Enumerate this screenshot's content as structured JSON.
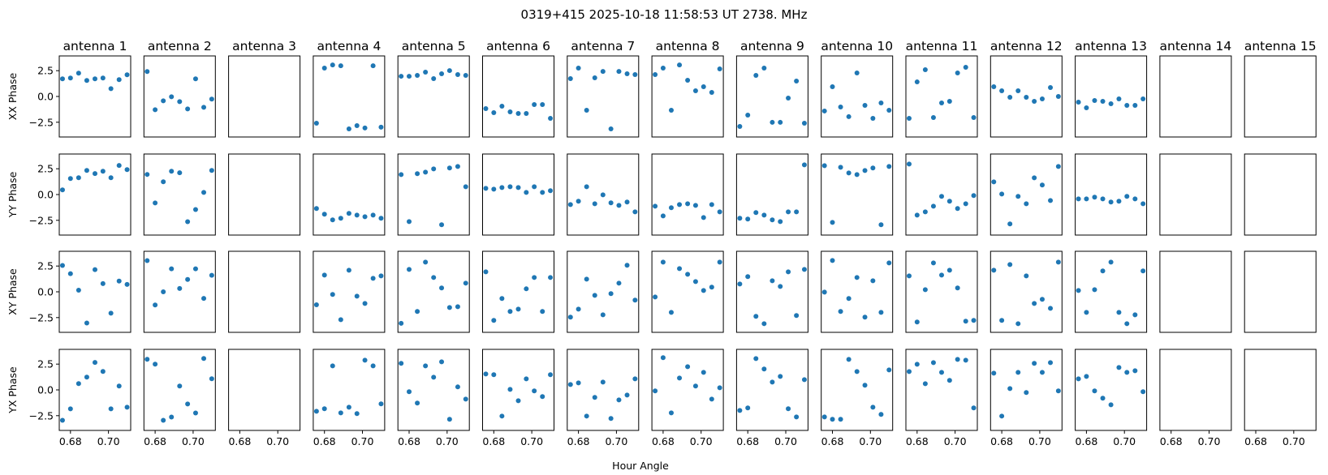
{
  "chart_data": {
    "type": "scatter",
    "title": "0319+415  2025-10-18 11:58:53 UT  2738. MHz",
    "xlabel": "Hour Angle",
    "row_labels": [
      "XX Phase",
      "YY Phase",
      "XY Phase",
      "YX Phase"
    ],
    "xlim": [
      0.6741,
      0.7117
    ],
    "ylim": [
      -3.93,
      3.93
    ],
    "xticks": [
      0.68,
      0.7
    ],
    "xtick_labels": [
      "0.68",
      "0.70"
    ],
    "yticks": [
      2.5,
      0.0,
      -2.5
    ],
    "ytick_labels": [
      "2.5",
      "0.0",
      "−2.5"
    ],
    "marker_color": "#1f77b4",
    "grid": false,
    "x": [
      0.6758,
      0.68,
      0.6843,
      0.6886,
      0.6929,
      0.6971,
      0.7013,
      0.7056,
      0.7098
    ],
    "antennas": [
      {
        "name": "antenna 1",
        "XX": [
          1.71,
          1.79,
          2.26,
          1.55,
          1.71,
          1.79,
          0.76,
          1.63,
          2.1
        ],
        "YY": [
          0.45,
          1.55,
          1.63,
          2.34,
          2.03,
          2.26,
          1.63,
          2.82,
          2.42
        ],
        "XY": [
          2.55,
          1.76,
          0.16,
          -3.03,
          2.15,
          0.8,
          -2.07,
          1.04,
          0.72
        ],
        "YX": [
          -2.95,
          -1.84,
          0.61,
          1.24,
          2.66,
          1.79,
          -1.84,
          0.37,
          -1.68
        ]
      },
      {
        "name": "antenna 2",
        "XX": [
          2.42,
          -1.29,
          -0.42,
          -0.03,
          -0.5,
          -1.21,
          1.71,
          -1.05,
          -0.26
        ],
        "YY": [
          1.95,
          -0.82,
          1.24,
          2.26,
          2.11,
          -2.63,
          -1.45,
          0.21,
          2.34
        ],
        "XY": [
          3.03,
          -1.28,
          0,
          2.23,
          0.32,
          1.2,
          2.23,
          -0.64,
          1.6
        ],
        "YX": [
          2.97,
          2.5,
          -2.95,
          -2.63,
          0.37,
          -1.37,
          -2.24,
          3.05,
          1.08
        ]
      },
      {
        "name": "antenna 3",
        "XX": null,
        "YY": null,
        "XY": null,
        "YX": null
      },
      {
        "name": "antenna 4",
        "XX": [
          -2.59,
          2.75,
          3.06,
          2.98,
          -3.14,
          -2.83,
          -3.06,
          2.98,
          -2.98
        ],
        "YY": [
          -1.36,
          -1.91,
          -2.46,
          -2.3,
          -1.83,
          -1.99,
          -2.15,
          -1.99,
          -2.3
        ],
        "XY": [
          -1.26,
          1.62,
          -0.26,
          -2.7,
          2.09,
          -0.42,
          -1.13,
          1.31,
          1.54
        ],
        "YX": [
          -2.07,
          -1.83,
          2.33,
          -2.23,
          -1.68,
          -2.3,
          2.88,
          2.33,
          -1.36
        ]
      },
      {
        "name": "antenna 5",
        "XX": [
          1.96,
          1.96,
          2.04,
          2.36,
          1.73,
          2.2,
          2.51,
          2.12,
          2.04
        ],
        "YY": [
          1.94,
          -2.62,
          2.02,
          2.17,
          2.49,
          -2.93,
          2.57,
          2.72,
          0.76
        ],
        "XY": [
          -3.06,
          2.17,
          -1.91,
          2.88,
          1.39,
          0.37,
          -1.52,
          -1.44,
          0.84
        ],
        "YX": [
          2.57,
          -0.18,
          -1.28,
          2.33,
          1.23,
          2.72,
          -2.85,
          0.29,
          -0.89
        ]
      },
      {
        "name": "antenna 6",
        "XX": [
          -1.18,
          -1.57,
          -0.94,
          -1.49,
          -1.65,
          -1.65,
          -0.79,
          -0.79,
          -2.12
        ],
        "YY": [
          0.6,
          0.52,
          0.68,
          0.76,
          0.68,
          0.21,
          0.76,
          0.21,
          0.37
        ],
        "XY": [
          1.94,
          -2.77,
          -0.65,
          -1.91,
          -1.68,
          0.29,
          1.39,
          -1.91,
          1.39
        ],
        "YX": [
          1.54,
          1.47,
          -2.54,
          0.05,
          -1.05,
          1.07,
          -0.1,
          -0.65,
          1.47
        ]
      },
      {
        "name": "antenna 7",
        "XX": [
          1.73,
          2.75,
          -1.34,
          1.81,
          2.43,
          -3.14,
          2.43,
          2.2,
          2.12
        ],
        "YY": [
          -0.97,
          -0.65,
          0.76,
          -0.89,
          -0.03,
          -0.81,
          -1.05,
          -0.73,
          -1.68
        ],
        "XY": [
          -2.46,
          -1.68,
          1.23,
          -0.34,
          -2.23,
          -0.18,
          0.84,
          2.57,
          -0.81
        ],
        "YX": [
          0.52,
          0.68,
          -2.54,
          -0.73,
          0.76,
          -2.77,
          -0.97,
          -0.5,
          1.07
        ]
      },
      {
        "name": "antenna 8",
        "XX": [
          2.12,
          2.75,
          -1.34,
          3.06,
          1.57,
          0.55,
          0.94,
          0.39,
          2.67
        ],
        "YY": [
          -1.13,
          -2.07,
          -1.28,
          -0.97,
          -0.89,
          -1.05,
          -2.23,
          -0.97,
          -1.68
        ],
        "XY": [
          -0.5,
          2.88,
          -1.99,
          2.25,
          1.7,
          0.99,
          0.13,
          0.45,
          2.88
        ],
        "YX": [
          -0.1,
          3.12,
          -2.23,
          1.15,
          2.25,
          0.37,
          1.7,
          -0.89,
          0.21
        ]
      },
      {
        "name": "antenna 9",
        "XX": [
          -2.91,
          -1.81,
          2.04,
          2.75,
          -2.51,
          -2.51,
          -0.16,
          1.49,
          -2.59
        ],
        "YY": [
          -2.3,
          -2.38,
          -1.75,
          -1.99,
          -2.46,
          -2.62,
          -1.68,
          -1.68,
          2.88
        ],
        "XY": [
          0.76,
          1.47,
          -2.38,
          -3.09,
          1.07,
          0.52,
          1.94,
          -2.3,
          2.17
        ],
        "YX": [
          -1.99,
          -1.75,
          3.04,
          2.02,
          0.76,
          1.31,
          -1.83,
          -2.62,
          0.99
        ]
      },
      {
        "name": "antenna 10",
        "XX": [
          -1.41,
          0.94,
          -1.02,
          -1.96,
          2.28,
          -0.86,
          -2.12,
          -0.63,
          -1.34
        ],
        "YY": [
          2.8,
          -2.7,
          2.64,
          2.09,
          1.94,
          2.33,
          2.57,
          -2.93,
          2.72
        ],
        "XY": [
          -0.03,
          3.04,
          -1.91,
          -0.65,
          1.39,
          -2.46,
          1.07,
          -1.99,
          2.8
        ],
        "YX": [
          -2.62,
          -2.85,
          -2.85,
          2.96,
          1.78,
          0.45,
          -1.68,
          -2.38,
          1.94
        ]
      },
      {
        "name": "antenna 11",
        "XX": [
          -2.12,
          1.41,
          2.59,
          -2.04,
          -0.63,
          -0.47,
          2.28,
          2.83,
          -2.04
        ],
        "YY": [
          2.96,
          -1.99,
          -1.68,
          -1.13,
          -0.18,
          -0.65,
          -1.36,
          -0.89,
          -0.1
        ],
        "XY": [
          1.54,
          -2.93,
          0.21,
          2.8,
          1.62,
          2.09,
          0.37,
          -2.85,
          -2.77
        ],
        "YX": [
          1.78,
          2.49,
          0.6,
          2.64,
          1.7,
          0.92,
          2.96,
          2.88,
          -1.75
        ]
      },
      {
        "name": "antenna 12",
        "XX": [
          0.94,
          0.55,
          -0.08,
          0.55,
          -0.08,
          -0.47,
          -0.24,
          0.86,
          0
        ],
        "YY": [
          1.23,
          0.05,
          -2.85,
          -0.18,
          -0.89,
          1.62,
          0.92,
          -0.58,
          2.72
        ],
        "XY": [
          2.09,
          -2.77,
          2.64,
          -3.09,
          1.54,
          -1.13,
          -0.73,
          -1.6,
          2.88
        ],
        "YX": [
          1.62,
          -2.54,
          0.13,
          1.7,
          -0.26,
          2.57,
          1.7,
          2.64,
          -0.1
        ]
      },
      {
        "name": "antenna 13",
        "XX": [
          -0.55,
          -1.1,
          -0.39,
          -0.47,
          -0.71,
          -0.24,
          -0.86,
          -0.86,
          -0.24
        ],
        "YY": [
          -0.42,
          -0.42,
          -0.26,
          -0.42,
          -0.73,
          -0.65,
          -0.18,
          -0.42,
          -0.89
        ],
        "XY": [
          0.13,
          -1.99,
          0.21,
          2.02,
          2.88,
          -1.99,
          -3.09,
          -2.23,
          2.02
        ],
        "YX": [
          1.07,
          1.31,
          -0.1,
          -0.81,
          -1.44,
          2.17,
          1.7,
          1.86,
          -0.18
        ]
      },
      {
        "name": "antenna 14",
        "XX": null,
        "YY": null,
        "XY": null,
        "YX": null
      },
      {
        "name": "antenna 15",
        "XX": null,
        "YY": null,
        "XY": null,
        "YX": null
      }
    ]
  }
}
